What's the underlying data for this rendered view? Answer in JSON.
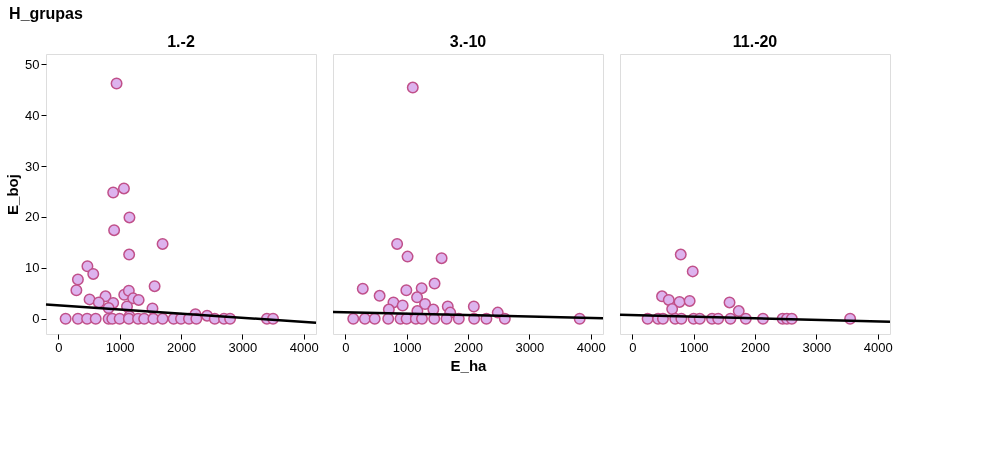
{
  "chart_data": [
    {
      "type": "scatter",
      "title": "1.-2",
      "ylabel": "E_boj",
      "annotations": [
        "H_grupas"
      ],
      "xlim": [
        -200,
        4200
      ],
      "ylim": [
        -3,
        52
      ],
      "xticks": [
        0,
        1000,
        2000,
        3000,
        4000
      ],
      "yticks": [
        0,
        10,
        20,
        30,
        40,
        50
      ],
      "grid": false,
      "marker": "circle",
      "series": [
        {
          "color": "#ddb3ee",
          "x": [
            950,
            895,
            1070,
            1160,
            910,
            1155,
            1700,
            475,
            570,
            320,
            295,
            1570,
            510,
            770,
            1075,
            1150,
            1220,
            1310,
            895,
            660,
            820,
            1120,
            1535,
            1160,
            2235,
            2425,
            120,
            320,
            470,
            610,
            820,
            880,
            1000,
            1150,
            1300,
            1400,
            1550,
            1700,
            1880,
            2000,
            2130,
            2250,
            2550,
            2700,
            2800,
            3400,
            3500
          ],
          "values": [
            46.2,
            24.8,
            25.6,
            19.9,
            17.4,
            12.6,
            14.7,
            10.3,
            8.8,
            7.7,
            5.6,
            6.4,
            3.8,
            4.4,
            4.7,
            5.5,
            4.0,
            3.7,
            3.1,
            3.2,
            2.1,
            2.4,
            2.0,
            0.5,
            0.9,
            0.6,
            0,
            0,
            0,
            0,
            0,
            0,
            0,
            0,
            0,
            0,
            0,
            0,
            0,
            0,
            0,
            0,
            0,
            0,
            0,
            0,
            0
          ]
        },
        {
          "type": "line",
          "marker": "none",
          "color": "#000000",
          "x": [
            -200,
            4200
          ],
          "values": [
            2.8,
            -0.8
          ]
        }
      ]
    },
    {
      "type": "scatter",
      "title": "3.-10",
      "xlabel": "E_ha",
      "xlim": [
        -200,
        4200
      ],
      "ylim": [
        -3,
        52
      ],
      "xticks": [
        0,
        1000,
        2000,
        3000,
        4000
      ],
      "yticks": [
        0,
        10,
        20,
        30,
        40,
        50
      ],
      "tick_labels": "x",
      "grid": false,
      "marker": "circle",
      "series": [
        {
          "color": "#ddb3ee",
          "x": [
            1100,
            845,
            1015,
            1570,
            285,
            560,
            995,
            1245,
            1455,
            1170,
            785,
            935,
            1300,
            1670,
            2095,
            2485,
            710,
            1435,
            1710,
            1175,
            130,
            320,
            480,
            700,
            900,
            1000,
            1150,
            1250,
            1450,
            1650,
            1850,
            2100,
            2300,
            2600,
            3820
          ],
          "values": [
            45.4,
            14.7,
            12.2,
            11.9,
            5.9,
            4.5,
            5.6,
            6.0,
            6.9,
            4.2,
            3.2,
            2.6,
            2.9,
            2.4,
            2.4,
            1.2,
            1.8,
            1.8,
            1.2,
            1.5,
            0,
            0,
            0,
            0,
            0,
            0,
            0,
            0,
            0,
            0,
            0,
            0,
            0,
            0,
            0
          ]
        },
        {
          "type": "line",
          "marker": "none",
          "color": "#000000",
          "x": [
            -200,
            4200
          ],
          "values": [
            1.3,
            0.1
          ]
        }
      ]
    },
    {
      "type": "scatter",
      "title": "11.-20",
      "xlim": [
        -200,
        4200
      ],
      "ylim": [
        -3,
        52
      ],
      "xticks": [
        0,
        1000,
        2000,
        3000,
        4000
      ],
      "yticks": [
        0,
        10,
        20,
        30,
        40,
        50
      ],
      "tick_labels": "x",
      "grid": false,
      "marker": "circle",
      "series": [
        {
          "color": "#ddb3ee",
          "x": [
            790,
            985,
            485,
            595,
            770,
            935,
            1585,
            650,
            1735,
            250,
            420,
            500,
            700,
            800,
            1000,
            1100,
            1300,
            1400,
            1600,
            1850,
            2130,
            2450,
            2520,
            2600,
            3550
          ],
          "values": [
            12.6,
            9.3,
            4.4,
            3.7,
            3.3,
            3.5,
            3.2,
            1.9,
            1.5,
            0,
            0,
            0,
            0,
            0,
            0,
            0,
            0,
            0,
            0,
            0,
            0,
            0,
            0,
            0,
            0
          ]
        },
        {
          "type": "line",
          "marker": "none",
          "color": "#000000",
          "x": [
            -200,
            4200
          ],
          "values": [
            0.8,
            -0.6
          ]
        }
      ]
    }
  ]
}
